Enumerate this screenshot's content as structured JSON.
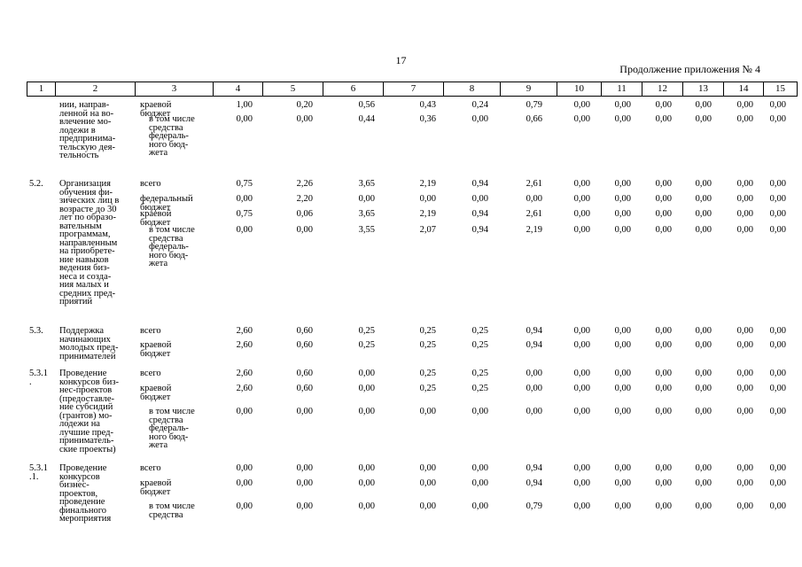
{
  "page_number": "17",
  "continuation": "Продолжение приложения № 4",
  "columns": [
    "1",
    "2",
    "3",
    "4",
    "5",
    "6",
    "7",
    "8",
    "9",
    "10",
    "11",
    "12",
    "13",
    "14",
    "15"
  ],
  "sections": [
    {
      "num": "",
      "name": "нии, направ-\nленной на во-\nвлечение мо-\nлодежи в\nпредпринима-\nтельскую дея-\nтельность",
      "rows": [
        {
          "label": "краевой\nбюджет",
          "values": [
            "1,00",
            "0,20",
            "0,56",
            "0,43",
            "0,24",
            "0,79",
            "0,00",
            "0,00",
            "0,00",
            "0,00",
            "0,00",
            "0,00"
          ]
        },
        {
          "label": "в том числе\nсредства\nфедераль-\nного бюд-\nжета",
          "values": [
            "0,00",
            "0,00",
            "0,44",
            "0,36",
            "0,00",
            "0,66",
            "0,00",
            "0,00",
            "0,00",
            "0,00",
            "0,00",
            "0,00"
          ]
        }
      ]
    },
    {
      "num": "5.2.",
      "name": "Организация\nобучения фи-\nзических лиц в\nвозрасте до 30\nлет по образо-\nвательным\nпрограммам,\nнаправленным\nна приобрете-\nние навыков\nведения биз-\nнеса и созда-\nния малых и\nсредних пред-\nприятий",
      "rows": [
        {
          "label": "всего",
          "values": [
            "0,75",
            "2,26",
            "3,65",
            "2,19",
            "0,94",
            "2,61",
            "0,00",
            "0,00",
            "0,00",
            "0,00",
            "0,00",
            "0,00"
          ]
        },
        {
          "label": "федеральный\nбюджет",
          "values": [
            "0,00",
            "2,20",
            "0,00",
            "0,00",
            "0,00",
            "0,00",
            "0,00",
            "0,00",
            "0,00",
            "0,00",
            "0,00",
            "0,00"
          ]
        },
        {
          "label": "краевой\nбюджет",
          "values": [
            "0,75",
            "0,06",
            "3,65",
            "2,19",
            "0,94",
            "2,61",
            "0,00",
            "0,00",
            "0,00",
            "0,00",
            "0,00",
            "0,00"
          ]
        },
        {
          "label": "в том числе\nсредства\nфедераль-\nного бюд-\nжета",
          "values": [
            "0,00",
            "0,00",
            "3,55",
            "2,07",
            "0,94",
            "2,19",
            "0,00",
            "0,00",
            "0,00",
            "0,00",
            "0,00",
            "0,00"
          ]
        }
      ]
    },
    {
      "num": "5.3.",
      "name": "Поддержка\nначинающих\nмолодых пред-\nпринимателей",
      "rows": [
        {
          "label": "всего",
          "values": [
            "2,60",
            "0,60",
            "0,25",
            "0,25",
            "0,25",
            "0,94",
            "0,00",
            "0,00",
            "0,00",
            "0,00",
            "0,00",
            "0,00"
          ]
        },
        {
          "label": "краевой\nбюджет",
          "values": [
            "2,60",
            "0,60",
            "0,25",
            "0,25",
            "0,25",
            "0,94",
            "0,00",
            "0,00",
            "0,00",
            "0,00",
            "0,00",
            "0,00"
          ]
        }
      ]
    },
    {
      "num": "5.3.1\n.",
      "name": "Проведение\nконкурсов биз-\nнес-проектов\n(предоставле-\nние субсидий\n(грантов) мо-\nлодежи на\nлучшие пред-\nприниматель-\nские проекты)",
      "rows": [
        {
          "label": "всего",
          "values": [
            "2,60",
            "0,60",
            "0,00",
            "0,25",
            "0,25",
            "0,00",
            "0,00",
            "0,00",
            "0,00",
            "0,00",
            "0,00",
            "0,00"
          ]
        },
        {
          "label": "краевой\nбюджет",
          "values": [
            "2,60",
            "0,60",
            "0,00",
            "0,25",
            "0,25",
            "0,00",
            "0,00",
            "0,00",
            "0,00",
            "0,00",
            "0,00",
            "0,00"
          ]
        },
        {
          "label": "в том числе\nсредства\nфедераль-\nного бюд-\nжета",
          "values": [
            "0,00",
            "0,00",
            "0,00",
            "0,00",
            "0,00",
            "0,00",
            "0,00",
            "0,00",
            "0,00",
            "0,00",
            "0,00",
            "0,00"
          ]
        }
      ]
    },
    {
      "num": "5.3.1\n.1.",
      "name": "Проведение\nконкурсов\nбизнес-\nпроектов,\nпроведение\nфинального\nмероприятия",
      "rows": [
        {
          "label": "всего",
          "values": [
            "0,00",
            "0,00",
            "0,00",
            "0,00",
            "0,00",
            "0,94",
            "0,00",
            "0,00",
            "0,00",
            "0,00",
            "0,00",
            "0,00"
          ]
        },
        {
          "label": "краевой\nбюджет",
          "values": [
            "0,00",
            "0,00",
            "0,00",
            "0,00",
            "0,00",
            "0,94",
            "0,00",
            "0,00",
            "0,00",
            "0,00",
            "0,00",
            "0,00"
          ]
        },
        {
          "label": "в том числе\nсредства",
          "values": [
            "0,00",
            "0,00",
            "0,00",
            "0,00",
            "0,00",
            "0,79",
            "0,00",
            "0,00",
            "0,00",
            "0,00",
            "0,00",
            "0,00"
          ]
        }
      ]
    }
  ]
}
